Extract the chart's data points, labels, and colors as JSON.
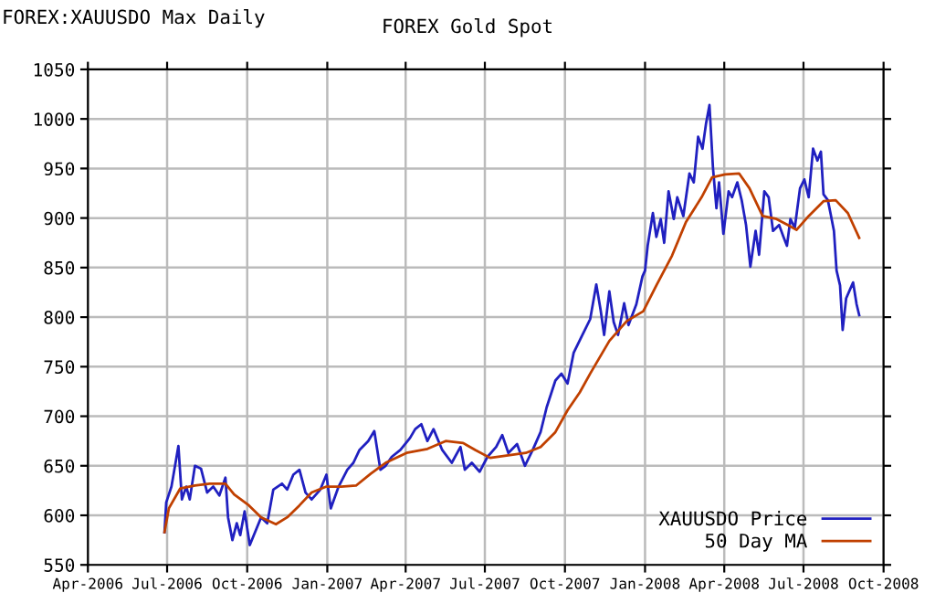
{
  "chart_data": {
    "type": "line",
    "title": "FOREX Gold Spot",
    "subtitle": "FOREX:XAUUSDO Max Daily",
    "xlim": [
      "2006-04-01",
      "2008-10-01"
    ],
    "xticks": [
      {
        "value": "2006-04-01",
        "label": "Apr-2006"
      },
      {
        "value": "2006-07-01",
        "label": "Jul-2006"
      },
      {
        "value": "2006-10-01",
        "label": "Oct-2006"
      },
      {
        "value": "2007-01-01",
        "label": "Jan-2007"
      },
      {
        "value": "2007-04-01",
        "label": "Apr-2007"
      },
      {
        "value": "2007-07-01",
        "label": "Jul-2007"
      },
      {
        "value": "2007-10-01",
        "label": "Oct-2007"
      },
      {
        "value": "2008-01-01",
        "label": "Jan-2008"
      },
      {
        "value": "2008-04-01",
        "label": "Apr-2008"
      },
      {
        "value": "2008-07-01",
        "label": "Jul-2008"
      },
      {
        "value": "2008-10-01",
        "label": "Oct-2008"
      }
    ],
    "ylim": [
      550,
      1050
    ],
    "yticks": [
      550,
      600,
      650,
      700,
      750,
      800,
      850,
      900,
      950,
      1000,
      1050
    ],
    "grid": true,
    "legend": "bottom right",
    "line_style": "solid",
    "series": [
      {
        "name": "XAUUSDO Price",
        "color": "#2020c0",
        "x": [
          "2006-06-28",
          "2006-06-30",
          "2006-07-06",
          "2006-07-14",
          "2006-07-18",
          "2006-07-23",
          "2006-07-27",
          "2006-08-02",
          "2006-08-09",
          "2006-08-16",
          "2006-08-23",
          "2006-08-30",
          "2006-09-06",
          "2006-09-09",
          "2006-09-14",
          "2006-09-19",
          "2006-09-23",
          "2006-09-28",
          "2006-10-04",
          "2006-10-10",
          "2006-10-17",
          "2006-10-24",
          "2006-10-31",
          "2006-11-10",
          "2006-11-16",
          "2006-11-23",
          "2006-11-30",
          "2006-12-07",
          "2006-12-14",
          "2006-12-24",
          "2006-12-31",
          "2007-01-05",
          "2007-01-14",
          "2007-01-24",
          "2007-01-31",
          "2007-02-07",
          "2007-02-17",
          "2007-02-24",
          "2007-03-03",
          "2007-03-09",
          "2007-03-16",
          "2007-03-26",
          "2007-04-06",
          "2007-04-12",
          "2007-04-19",
          "2007-04-26",
          "2007-05-03",
          "2007-05-13",
          "2007-05-24",
          "2007-06-03",
          "2007-06-08",
          "2007-06-16",
          "2007-06-25",
          "2007-07-04",
          "2007-07-14",
          "2007-07-21",
          "2007-07-28",
          "2007-08-07",
          "2007-08-16",
          "2007-08-25",
          "2007-09-03",
          "2007-09-10",
          "2007-09-20",
          "2007-09-27",
          "2007-10-04",
          "2007-10-11",
          "2007-10-21",
          "2007-10-30",
          "2007-11-06",
          "2007-11-11",
          "2007-11-15",
          "2007-11-21",
          "2007-11-26",
          "2007-12-01",
          "2007-12-08",
          "2007-12-13",
          "2007-12-22",
          "2007-12-29",
          "2008-01-01",
          "2008-01-04",
          "2008-01-10",
          "2008-01-14",
          "2008-01-19",
          "2008-01-23",
          "2008-01-28",
          "2008-02-03",
          "2008-02-07",
          "2008-02-14",
          "2008-02-21",
          "2008-02-26",
          "2008-03-02",
          "2008-03-07",
          "2008-03-11",
          "2008-03-15",
          "2008-03-19",
          "2008-03-23",
          "2008-03-26",
          "2008-03-31",
          "2008-04-06",
          "2008-04-10",
          "2008-04-16",
          "2008-04-21",
          "2008-04-26",
          "2008-05-01",
          "2008-05-07",
          "2008-05-11",
          "2008-05-17",
          "2008-05-22",
          "2008-05-27",
          "2008-06-03",
          "2008-06-08",
          "2008-06-12",
          "2008-06-16",
          "2008-06-21",
          "2008-06-27",
          "2008-07-02",
          "2008-07-07",
          "2008-07-12",
          "2008-07-17",
          "2008-07-21",
          "2008-07-24",
          "2008-07-29",
          "2008-08-01",
          "2008-08-05",
          "2008-08-08",
          "2008-08-12",
          "2008-08-15",
          "2008-08-19",
          "2008-08-24",
          "2008-08-27",
          "2008-08-31",
          "2008-09-03"
        ],
        "values": [
          583,
          613,
          629,
          670,
          616,
          629,
          616,
          650,
          647,
          623,
          629,
          620,
          638,
          598,
          575,
          592,
          580,
          604,
          570,
          583,
          598,
          592,
          626,
          632,
          626,
          641,
          646,
          623,
          616,
          626,
          641,
          607,
          629,
          646,
          653,
          666,
          675,
          685,
          646,
          650,
          659,
          666,
          678,
          687,
          692,
          675,
          687,
          666,
          653,
          669,
          646,
          653,
          644,
          659,
          669,
          681,
          663,
          672,
          650,
          666,
          684,
          709,
          736,
          743,
          733,
          764,
          782,
          798,
          833,
          807,
          782,
          826,
          795,
          782,
          814,
          792,
          813,
          841,
          847,
          872,
          905,
          881,
          899,
          875,
          927,
          899,
          921,
          902,
          945,
          936,
          982,
          970,
          995,
          1014,
          951,
          910,
          936,
          884,
          927,
          921,
          936,
          918,
          893,
          851,
          887,
          863,
          927,
          921,
          887,
          893,
          881,
          872,
          899,
          890,
          930,
          939,
          921,
          970,
          958,
          967,
          924,
          918,
          905,
          887,
          847,
          832,
          787,
          819,
          829,
          835,
          813,
          802
        ]
      },
      {
        "name": "50 Day MA",
        "color": "#c04000",
        "x": [
          "2006-06-28",
          "2006-07-03",
          "2006-07-16",
          "2006-08-02",
          "2006-08-19",
          "2006-09-06",
          "2006-09-16",
          "2006-10-03",
          "2006-10-17",
          "2006-11-03",
          "2006-11-16",
          "2006-11-30",
          "2006-12-14",
          "2006-12-31",
          "2007-01-17",
          "2007-02-03",
          "2007-02-20",
          "2007-03-09",
          "2007-04-02",
          "2007-04-26",
          "2007-05-17",
          "2007-06-06",
          "2007-06-20",
          "2007-07-07",
          "2007-07-24",
          "2007-08-17",
          "2007-09-03",
          "2007-09-20",
          "2007-10-04",
          "2007-10-18",
          "2007-10-30",
          "2007-11-21",
          "2007-12-11",
          "2007-12-30",
          "2008-01-14",
          "2008-02-01",
          "2008-02-17",
          "2008-03-06",
          "2008-03-18",
          "2008-04-02",
          "2008-04-18",
          "2008-04-30",
          "2008-05-15",
          "2008-05-31",
          "2008-06-13",
          "2008-06-23",
          "2008-07-07",
          "2008-07-24",
          "2008-08-07",
          "2008-08-21",
          "2008-09-03"
        ],
        "values": [
          583,
          607,
          627,
          630,
          632,
          632,
          621,
          610,
          598,
          591,
          598,
          610,
          623,
          629,
          629,
          630,
          642,
          653,
          663,
          667,
          675,
          673,
          666,
          658,
          660,
          663,
          669,
          684,
          706,
          724,
          743,
          776,
          796,
          806,
          832,
          862,
          896,
          921,
          941,
          944,
          945,
          930,
          902,
          899,
          893,
          888,
          902,
          917,
          918,
          905,
          880
        ]
      }
    ]
  }
}
